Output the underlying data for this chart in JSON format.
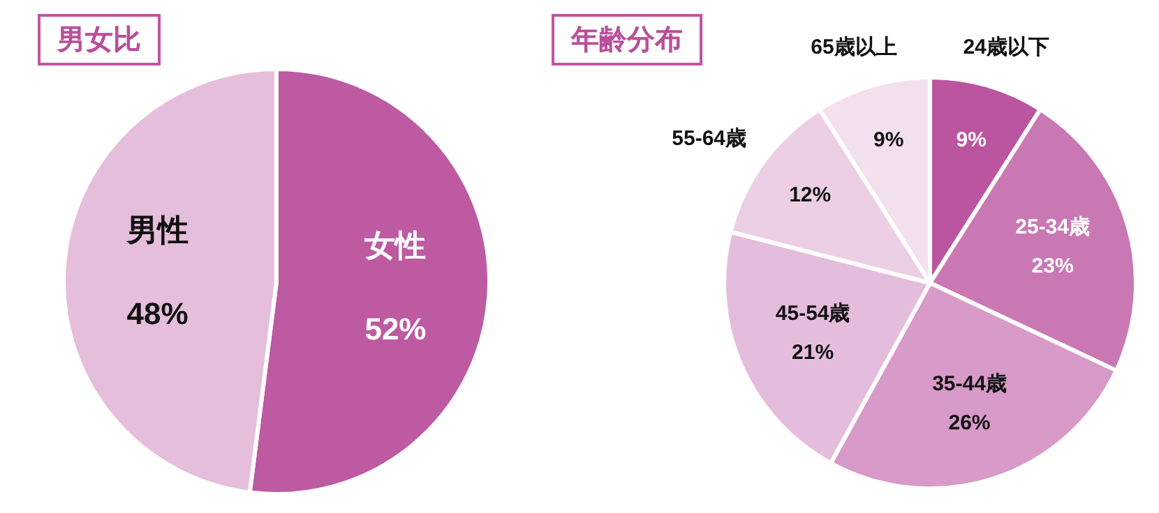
{
  "chart_data": [
    {
      "type": "pie",
      "title": "男女比",
      "categories": [
        "女性",
        "男性"
      ],
      "values": [
        52,
        48
      ],
      "colors": [
        "#bd5aa2",
        "#e5bedb"
      ],
      "value_labels": [
        "52%",
        "48%"
      ],
      "legend": false
    },
    {
      "type": "pie",
      "title": "年齢分布",
      "categories": [
        "24歳以下",
        "25-34歳",
        "35-44歳",
        "45-54歳",
        "55-64歳",
        "65歳以上"
      ],
      "values": [
        9,
        23,
        26,
        21,
        12,
        9
      ],
      "colors": [
        "#bb55a0",
        "#c978b4",
        "#d89ac8",
        "#e5bddc",
        "#edcfe5",
        "#f3e0ee"
      ],
      "value_labels": [
        "9%",
        "23%",
        "26%",
        "21%",
        "12%",
        "9%"
      ],
      "legend": false
    }
  ]
}
